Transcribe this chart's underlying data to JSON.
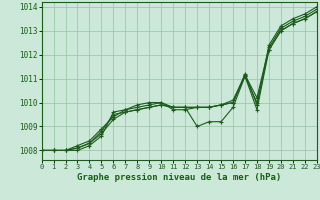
{
  "bg_color": "#cce8d8",
  "grid_color": "#99ccaa",
  "line_color": "#1a5c1a",
  "marker": "+",
  "title": "Graphe pression niveau de la mer (hPa)",
  "xlim": [
    0,
    23
  ],
  "ylim": [
    1007.6,
    1014.2
  ],
  "yticks": [
    1008,
    1009,
    1010,
    1011,
    1012,
    1013,
    1014
  ],
  "xticks": [
    0,
    1,
    2,
    3,
    4,
    5,
    6,
    7,
    8,
    9,
    10,
    11,
    12,
    13,
    14,
    15,
    16,
    17,
    18,
    19,
    20,
    21,
    22,
    23
  ],
  "series": [
    [
      1008.0,
      1008.0,
      1008.0,
      1008.1,
      1008.3,
      1008.8,
      1009.5,
      1009.6,
      1009.7,
      1009.8,
      1009.9,
      1009.8,
      1009.8,
      1009.8,
      1009.8,
      1009.9,
      1010.0,
      1011.1,
      1010.0,
      1012.2,
      1013.0,
      1013.3,
      1013.5,
      1013.8
    ],
    [
      1008.0,
      1008.0,
      1008.0,
      1008.1,
      1008.3,
      1008.7,
      1009.3,
      1009.6,
      1009.7,
      1009.8,
      1009.9,
      1009.8,
      1009.8,
      1009.0,
      1009.2,
      1009.2,
      1009.8,
      1011.1,
      1009.7,
      1012.2,
      1013.0,
      1013.3,
      1013.5,
      1013.8
    ],
    [
      1008.0,
      1008.0,
      1008.0,
      1008.2,
      1008.4,
      1008.9,
      1009.4,
      1009.7,
      1009.8,
      1009.9,
      1010.0,
      1009.8,
      1009.8,
      1009.8,
      1009.8,
      1009.9,
      1010.1,
      1011.15,
      1010.2,
      1012.3,
      1013.1,
      1013.4,
      1013.6,
      1013.9
    ],
    [
      1008.0,
      1008.0,
      1008.0,
      1008.0,
      1008.2,
      1008.6,
      1009.6,
      1009.7,
      1009.9,
      1010.0,
      1010.0,
      1009.7,
      1009.7,
      1009.8,
      1009.8,
      1009.9,
      1010.0,
      1011.2,
      1009.9,
      1012.4,
      1013.2,
      1013.5,
      1013.7,
      1014.0
    ]
  ]
}
